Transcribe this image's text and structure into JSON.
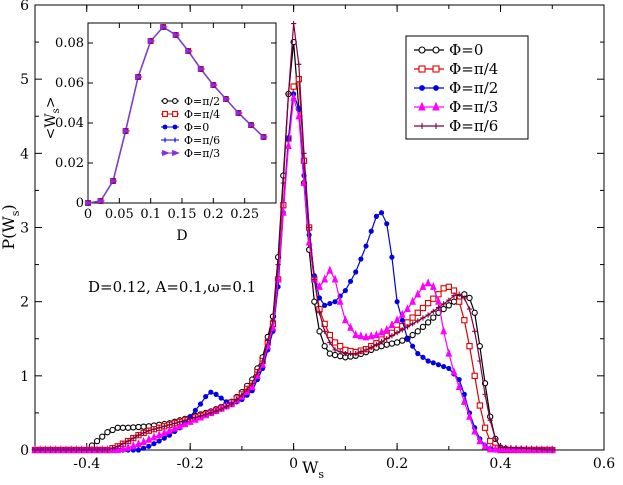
{
  "chart_data": [
    {
      "type": "line",
      "name": "main",
      "xlabel": "W_s",
      "xlabel_main": "W",
      "xlabel_sub": "s",
      "ylabel": "P(W_s)",
      "ylabel_main": "P(W",
      "ylabel_sub": "s",
      "ylabel_end": ")",
      "xlim": [
        -0.5,
        0.6
      ],
      "ylim": [
        0,
        6
      ],
      "xticks": [
        -0.4,
        -0.2,
        0,
        0.2,
        0.4,
        0.6
      ],
      "yticks": [
        0,
        1,
        2,
        3,
        4,
        5,
        6
      ],
      "xtick_labels": [
        "-0.4",
        "-0.2",
        "0",
        "0.2",
        "0.4",
        "0.6"
      ],
      "ytick_labels": [
        "0",
        "1",
        "2",
        "3",
        "4",
        "5",
        "6"
      ],
      "annotation": "D=0.12, A=0.1,ω=0.1",
      "legend_position": "top-right",
      "series": [
        {
          "name": "Φ=0",
          "color": "#000000",
          "marker": "circle",
          "x": [
            -0.5,
            -0.4,
            -0.38,
            -0.36,
            -0.34,
            -0.32,
            -0.3,
            -0.28,
            -0.26,
            -0.24,
            -0.22,
            -0.2,
            -0.18,
            -0.16,
            -0.14,
            -0.12,
            -0.1,
            -0.08,
            -0.06,
            -0.04,
            -0.03,
            -0.02,
            -0.01,
            0,
            0.01,
            0.02,
            0.03,
            0.04,
            0.05,
            0.06,
            0.07,
            0.08,
            0.1,
            0.12,
            0.14,
            0.16,
            0.18,
            0.2,
            0.22,
            0.24,
            0.26,
            0.28,
            0.3,
            0.32,
            0.33,
            0.34,
            0.35,
            0.36,
            0.37,
            0.38,
            0.39,
            0.4,
            0.42,
            0.5
          ],
          "y": [
            0,
            0,
            0.12,
            0.24,
            0.3,
            0.3,
            0.31,
            0.32,
            0.34,
            0.36,
            0.4,
            0.44,
            0.48,
            0.52,
            0.58,
            0.65,
            0.78,
            0.95,
            1.25,
            1.8,
            2.6,
            3.7,
            4.8,
            5.5,
            4.6,
            3.6,
            2.7,
            2.0,
            1.6,
            1.4,
            1.3,
            1.28,
            1.25,
            1.27,
            1.32,
            1.38,
            1.42,
            1.45,
            1.5,
            1.6,
            1.72,
            1.85,
            1.95,
            2.05,
            2.1,
            2.05,
            1.85,
            1.4,
            0.9,
            0.45,
            0.15,
            0.03,
            0,
            0
          ]
        },
        {
          "name": "Φ=π/4",
          "color": "#e00000",
          "marker": "square",
          "x": [
            -0.5,
            -0.36,
            -0.34,
            -0.32,
            -0.3,
            -0.28,
            -0.26,
            -0.24,
            -0.22,
            -0.2,
            -0.18,
            -0.16,
            -0.14,
            -0.12,
            -0.1,
            -0.08,
            -0.06,
            -0.04,
            -0.03,
            -0.02,
            -0.01,
            0,
            0.01,
            0.02,
            0.03,
            0.04,
            0.05,
            0.06,
            0.07,
            0.08,
            0.1,
            0.12,
            0.14,
            0.16,
            0.18,
            0.2,
            0.22,
            0.24,
            0.26,
            0.28,
            0.29,
            0.3,
            0.31,
            0.32,
            0.33,
            0.34,
            0.35,
            0.36,
            0.37,
            0.38,
            0.39,
            0.4,
            0.5
          ],
          "y": [
            0,
            0,
            0.05,
            0.12,
            0.2,
            0.26,
            0.3,
            0.34,
            0.38,
            0.42,
            0.46,
            0.5,
            0.56,
            0.64,
            0.75,
            0.9,
            1.2,
            1.7,
            2.3,
            3.3,
            4.2,
            4.9,
            5.0,
            3.9,
            3.0,
            2.3,
            1.9,
            1.7,
            1.55,
            1.45,
            1.35,
            1.32,
            1.36,
            1.44,
            1.54,
            1.62,
            1.72,
            1.85,
            1.98,
            2.1,
            2.18,
            2.2,
            2.15,
            2.0,
            1.75,
            1.4,
            1.0,
            0.6,
            0.3,
            0.12,
            0.03,
            0,
            0
          ]
        },
        {
          "name": "Φ=π/2",
          "color": "#0000e0",
          "marker": "circle-filled",
          "x": [
            -0.5,
            -0.3,
            -0.28,
            -0.26,
            -0.24,
            -0.22,
            -0.2,
            -0.18,
            -0.17,
            -0.16,
            -0.15,
            -0.14,
            -0.13,
            -0.12,
            -0.1,
            -0.08,
            -0.06,
            -0.04,
            -0.03,
            -0.02,
            -0.01,
            0,
            0.01,
            0.02,
            0.03,
            0.04,
            0.05,
            0.06,
            0.08,
            0.1,
            0.12,
            0.14,
            0.15,
            0.16,
            0.17,
            0.18,
            0.19,
            0.2,
            0.22,
            0.24,
            0.26,
            0.28,
            0.3,
            0.32,
            0.33,
            0.34,
            0.35,
            0.36,
            0.37,
            0.38,
            0.39,
            0.4,
            0.5
          ],
          "y": [
            0,
            0,
            0.05,
            0.12,
            0.2,
            0.3,
            0.45,
            0.62,
            0.72,
            0.78,
            0.75,
            0.7,
            0.65,
            0.62,
            0.68,
            0.8,
            1.1,
            1.6,
            2.2,
            3.2,
            4.2,
            4.8,
            4.6,
            3.7,
            2.9,
            2.35,
            2.05,
            1.95,
            2.0,
            2.15,
            2.4,
            2.75,
            2.95,
            3.15,
            3.2,
            3.05,
            2.6,
            2.0,
            1.5,
            1.3,
            1.2,
            1.15,
            1.1,
            0.95,
            0.75,
            0.5,
            0.3,
            0.15,
            0.06,
            0.02,
            0,
            0,
            0
          ]
        },
        {
          "name": "Φ=π/3",
          "color": "#ff00ff",
          "marker": "triangle",
          "x": [
            -0.5,
            -0.34,
            -0.32,
            -0.3,
            -0.28,
            -0.26,
            -0.24,
            -0.22,
            -0.2,
            -0.18,
            -0.16,
            -0.14,
            -0.12,
            -0.1,
            -0.08,
            -0.06,
            -0.04,
            -0.03,
            -0.02,
            -0.01,
            0,
            0.01,
            0.02,
            0.03,
            0.04,
            0.05,
            0.06,
            0.07,
            0.08,
            0.09,
            0.1,
            0.12,
            0.14,
            0.16,
            0.18,
            0.2,
            0.22,
            0.24,
            0.25,
            0.26,
            0.27,
            0.28,
            0.29,
            0.3,
            0.31,
            0.32,
            0.33,
            0.34,
            0.35,
            0.36,
            0.37,
            0.38,
            0.5
          ],
          "y": [
            0,
            0,
            0.03,
            0.08,
            0.14,
            0.2,
            0.26,
            0.32,
            0.38,
            0.44,
            0.5,
            0.56,
            0.62,
            0.72,
            0.85,
            1.15,
            1.65,
            2.3,
            3.2,
            4.1,
            4.75,
            4.5,
            3.6,
            2.8,
            2.3,
            2.2,
            2.3,
            2.42,
            2.3,
            2.0,
            1.75,
            1.55,
            1.52,
            1.55,
            1.62,
            1.75,
            1.9,
            2.1,
            2.2,
            2.25,
            2.2,
            2.0,
            1.6,
            1.3,
            1.05,
            0.85,
            0.65,
            0.45,
            0.25,
            0.12,
            0.05,
            0.01,
            0
          ]
        },
        {
          "name": "Φ=π/6",
          "color": "#800040",
          "marker": "plus",
          "x": [
            -0.5,
            -0.36,
            -0.34,
            -0.32,
            -0.3,
            -0.28,
            -0.26,
            -0.24,
            -0.22,
            -0.2,
            -0.18,
            -0.16,
            -0.14,
            -0.12,
            -0.1,
            -0.08,
            -0.06,
            -0.04,
            -0.03,
            -0.02,
            -0.01,
            0,
            0.01,
            0.02,
            0.03,
            0.04,
            0.05,
            0.06,
            0.07,
            0.08,
            0.1,
            0.12,
            0.14,
            0.16,
            0.18,
            0.2,
            0.22,
            0.24,
            0.26,
            0.28,
            0.3,
            0.31,
            0.32,
            0.33,
            0.34,
            0.35,
            0.36,
            0.37,
            0.38,
            0.39,
            0.4,
            0.5
          ],
          "y": [
            0,
            0,
            0.05,
            0.12,
            0.2,
            0.26,
            0.3,
            0.34,
            0.38,
            0.42,
            0.46,
            0.5,
            0.55,
            0.62,
            0.74,
            0.9,
            1.2,
            1.75,
            2.5,
            3.6,
            4.8,
            5.75,
            5.2,
            4.0,
            3.0,
            2.3,
            1.85,
            1.6,
            1.45,
            1.35,
            1.3,
            1.3,
            1.35,
            1.42,
            1.5,
            1.58,
            1.66,
            1.74,
            1.82,
            1.92,
            2.02,
            2.08,
            2.1,
            2.05,
            1.9,
            1.6,
            1.2,
            0.75,
            0.4,
            0.15,
            0.04,
            0
          ]
        }
      ]
    },
    {
      "type": "line",
      "name": "inset",
      "xlabel": "D",
      "ylabel": "<W_s>",
      "ylabel_main": "<W",
      "ylabel_sub": "s",
      "ylabel_end": ">",
      "xlim": [
        0,
        0.3
      ],
      "ylim": [
        0,
        0.09
      ],
      "xticks": [
        0,
        0.05,
        0.1,
        0.15,
        0.2,
        0.25
      ],
      "yticks": [
        0,
        0.02,
        0.04,
        0.06,
        0.08
      ],
      "xtick_labels": [
        "0",
        "0.05",
        "0.1",
        "0.15",
        "0.2",
        "0.25"
      ],
      "ytick_labels": [
        "0",
        "0.02",
        "0.04",
        "0.06",
        "0.08"
      ],
      "legend_position": "center-right",
      "x": [
        0.0,
        0.02,
        0.04,
        0.06,
        0.08,
        0.1,
        0.12,
        0.14,
        0.16,
        0.18,
        0.2,
        0.22,
        0.24,
        0.26,
        0.28
      ],
      "y": [
        0.0,
        0.001,
        0.011,
        0.036,
        0.063,
        0.081,
        0.088,
        0.084,
        0.076,
        0.067,
        0.059,
        0.052,
        0.045,
        0.039,
        0.033
      ],
      "series": [
        {
          "name": "Φ=π/2",
          "color": "#000000",
          "marker": "circle"
        },
        {
          "name": "Φ=π/4",
          "color": "#e00000",
          "marker": "square"
        },
        {
          "name": "Φ=0",
          "color": "#0000e0",
          "marker": "circle-filled"
        },
        {
          "name": "Φ=π/6",
          "color": "#0000e0",
          "marker": "plus"
        },
        {
          "name": "Φ=π/3",
          "color": "#8a2be2",
          "marker": "triangle-right"
        }
      ],
      "line_color": "#7b3fd0"
    }
  ]
}
